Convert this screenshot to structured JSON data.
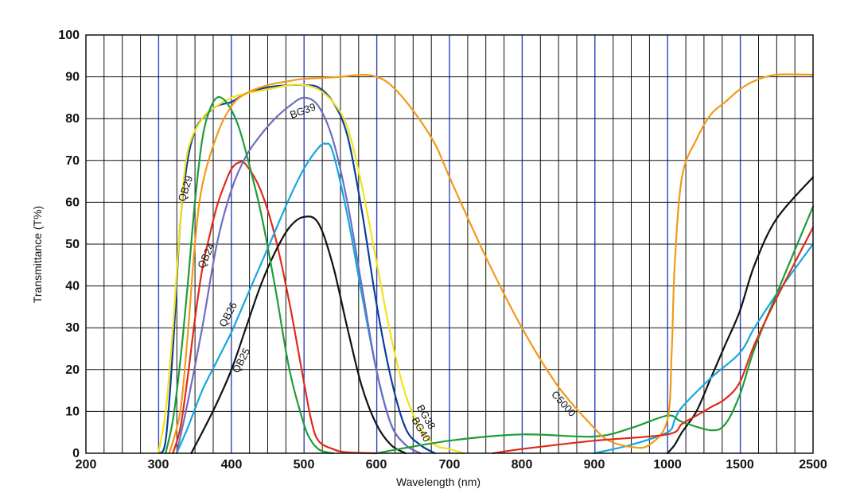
{
  "chart_data": {
    "type": "line",
    "title": "",
    "xlabel": "Wavelength (nm)",
    "ylabel": "Transmittance (T%)",
    "ylim": [
      0,
      100
    ],
    "grid": true,
    "x_tick_labels": [
      "200",
      "300",
      "400",
      "500",
      "600",
      "700",
      "800",
      "900",
      "1000",
      "1500",
      "2500"
    ],
    "y_tick_labels": [
      "0",
      "10",
      "20",
      "30",
      "40",
      "50",
      "60",
      "70",
      "80",
      "90",
      "100"
    ],
    "series": [
      {
        "name": "QB29",
        "color": "#0a3e9e",
        "x": [
          300,
          310,
          320,
          330,
          340,
          350,
          360,
          380,
          400,
          420,
          450,
          480,
          500,
          520,
          540,
          560,
          580,
          600,
          620,
          640,
          660,
          680
        ],
        "y": [
          0,
          3,
          25,
          55,
          70,
          77,
          80,
          83,
          84,
          86,
          87.5,
          88,
          88,
          87.5,
          84,
          76,
          58,
          36,
          18,
          6,
          2,
          0
        ]
      },
      {
        "name": "QB24",
        "color": "#e02a1a",
        "x": [
          320,
          330,
          340,
          350,
          360,
          370,
          380,
          390,
          400,
          410,
          420,
          440,
          460,
          480,
          500,
          510,
          520,
          540,
          560,
          600
        ],
        "y": [
          0,
          6,
          18,
          32,
          44,
          52,
          59,
          64,
          68,
          69.5,
          69,
          63,
          52,
          36,
          17,
          8,
          3,
          1,
          0.2,
          0
        ]
      },
      {
        "name": "QB25",
        "color": "#111111",
        "x": [
          345,
          360,
          380,
          400,
          420,
          440,
          460,
          480,
          500,
          520,
          540,
          560,
          580,
          600,
          620,
          640
        ],
        "y": [
          0,
          5,
          12,
          20,
          30,
          40,
          48,
          54,
          56.5,
          55,
          45,
          30,
          16,
          7,
          2,
          0
        ],
        "ext_x": [
          1000,
          1050,
          1100,
          1200,
          1300,
          1400,
          1500,
          1700,
          2000,
          2500
        ],
        "ext_y": [
          0,
          2,
          5,
          10,
          18,
          26,
          34,
          45,
          56,
          66
        ]
      },
      {
        "name": "QB26",
        "color": "#16a6e0",
        "x": [
          325,
          340,
          360,
          380,
          400,
          420,
          440,
          460,
          480,
          500,
          520,
          530,
          540,
          560,
          580,
          600,
          620,
          640,
          660
        ],
        "y": [
          0,
          6,
          15,
          22,
          29,
          37,
          45,
          53,
          61,
          68,
          73,
          74,
          72,
          57,
          38,
          20,
          7,
          2,
          0
        ],
        "ext_x": [
          900,
          950,
          1000,
          1050,
          1100,
          1300,
          1500,
          1700,
          2000,
          2500
        ],
        "ext_y": [
          0,
          2,
          5,
          8,
          11,
          18,
          24,
          30,
          38,
          50
        ]
      },
      {
        "name": "BG39",
        "color": "#6e6ec2",
        "x": [
          325,
          340,
          360,
          380,
          400,
          420,
          440,
          460,
          480,
          500,
          520,
          540,
          560,
          580,
          600,
          620,
          640,
          660
        ],
        "y": [
          0,
          12,
          30,
          50,
          63,
          71,
          76,
          80,
          83,
          85,
          83,
          75,
          60,
          40,
          20,
          7,
          2,
          0
        ]
      },
      {
        "name": "BG38",
        "color": "#f2e21a",
        "x": [
          300,
          310,
          320,
          330,
          340,
          360,
          380,
          400,
          420,
          450,
          480,
          500,
          520,
          540,
          560,
          580,
          600,
          620,
          640,
          660,
          680,
          700,
          720
        ],
        "y": [
          0,
          10,
          30,
          55,
          72,
          80,
          83,
          85,
          86,
          87,
          88,
          88,
          87,
          84,
          78,
          64,
          46,
          28,
          14,
          6,
          2,
          1,
          0
        ]
      },
      {
        "name": "BG40",
        "color": "#1e9c3a",
        "x": [
          310,
          320,
          330,
          340,
          350,
          360,
          370,
          380,
          390,
          400,
          410,
          420,
          440,
          460,
          480,
          500,
          510,
          520,
          530,
          540
        ],
        "y": [
          0,
          8,
          22,
          40,
          60,
          75,
          82,
          85,
          84.5,
          82,
          78,
          72,
          58,
          40,
          20,
          7,
          3,
          1,
          0.3,
          0
        ],
        "ext_x": [
          600,
          700,
          800,
          900,
          950,
          1000,
          1100,
          1300,
          1400,
          1500,
          1700,
          2000,
          2500
        ],
        "ext_y": [
          0,
          3,
          4.5,
          4,
          6,
          9,
          7.5,
          5.5,
          7,
          14,
          25,
          38,
          59
        ]
      },
      {
        "name": "C5000",
        "color": "#f29a18",
        "x": [
          315,
          330,
          340,
          350,
          360,
          380,
          400,
          420,
          450,
          480,
          500,
          550,
          580,
          600,
          620,
          650,
          680,
          700,
          750,
          800,
          850,
          900,
          920,
          950,
          975,
          1000,
          1030,
          1050,
          1100,
          1200,
          1300,
          1400,
          1500,
          1700,
          2000,
          2500
        ],
        "y": [
          0,
          10,
          28,
          50,
          64,
          76,
          83,
          86,
          88,
          89,
          89.5,
          90,
          90.5,
          90,
          88,
          82,
          74,
          66,
          47,
          30,
          16,
          6,
          3,
          1.5,
          2,
          8,
          25,
          45,
          66,
          75,
          81,
          84,
          87,
          89,
          90.5,
          90.5
        ]
      },
      {
        "name": "",
        "color": "#e02a1a",
        "x": [
          760,
          800,
          900,
          1000,
          1100,
          1200,
          1300,
          1400,
          1500,
          1700,
          2000,
          2500
        ],
        "y": [
          0,
          1,
          3,
          4.5,
          7,
          9,
          11,
          13,
          17,
          26,
          37,
          54
        ]
      }
    ],
    "curve_labels": [
      "QB29",
      "QB24",
      "QB26",
      "QB25",
      "BG39",
      "BG38",
      "BG40",
      "C5000"
    ]
  }
}
